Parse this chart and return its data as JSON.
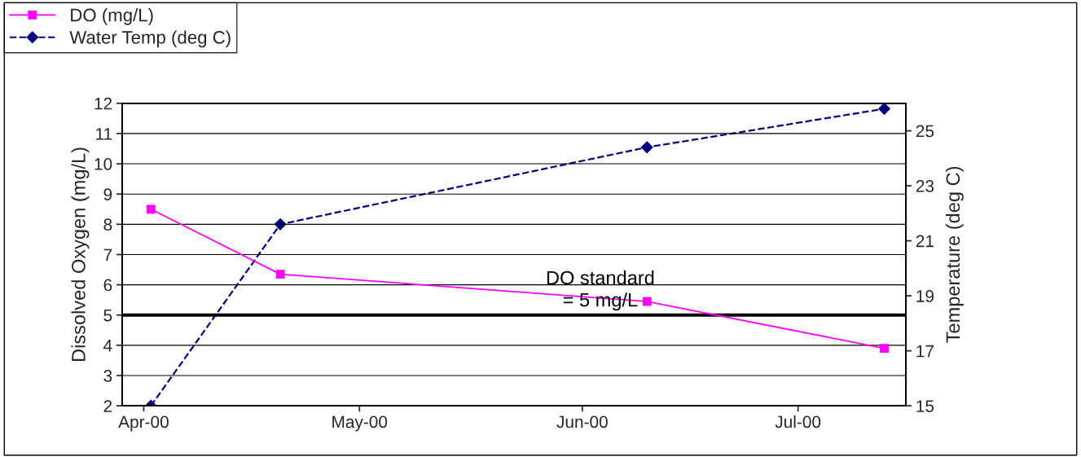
{
  "chart_data": {
    "type": "line",
    "ylabel": "Dissolved Oxygen (mg/L)",
    "y2label": "Temperature (deg C)",
    "x": [
      "2000-04-02",
      "2000-04-20",
      "2000-06-10",
      "2000-07-13"
    ],
    "series": [
      {
        "name": "DO (mg/L)",
        "color": "#ff00ff",
        "values": [
          8.5,
          6.35,
          5.45,
          3.9
        ],
        "marker": "square",
        "line_style": "solid"
      },
      {
        "name": "Water Temp (deg C)",
        "color": "#000080",
        "values": [
          15,
          21.6,
          24.4,
          25.8
        ],
        "axis": "y2",
        "marker": "diamond",
        "line_style": "dashed"
      }
    ],
    "xlim": [
      "2000-03-29",
      "2000-07-16"
    ],
    "xticks": [
      {
        "value": "2000-04-01",
        "label": "Apr-00"
      },
      {
        "value": "2000-05-01",
        "label": "May-00"
      },
      {
        "value": "2000-06-01",
        "label": "Jun-00"
      },
      {
        "value": "2000-07-01",
        "label": "Jul-00"
      }
    ],
    "ylim": [
      2,
      12
    ],
    "yticks": [
      2,
      3,
      4,
      5,
      6,
      7,
      8,
      9,
      10,
      11,
      12
    ],
    "y2lim": [
      15,
      26
    ],
    "y2ticks": [
      15,
      17,
      19,
      21,
      23,
      25
    ],
    "ref_lines": [
      {
        "axis": "y",
        "value": 5,
        "label": "DO standard\n= 5 mg/L",
        "color": "#000000",
        "line_style": "solid"
      }
    ],
    "grid": "y",
    "legend": "top left"
  }
}
